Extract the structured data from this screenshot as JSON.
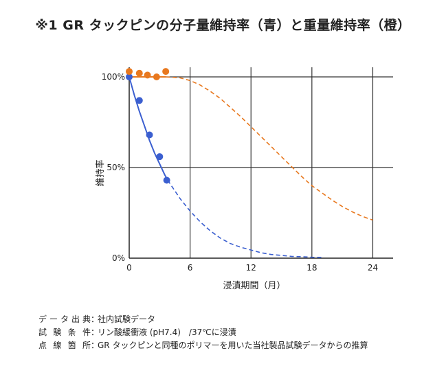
{
  "chart_data": {
    "type": "line",
    "title": "※1 GR タックピンの分子量維持率（青）と重量維持率（橙）",
    "xlabel": "浸漬期間（月）",
    "ylabel": "維持率",
    "xlim": [
      0,
      26
    ],
    "ylim": [
      0,
      100
    ],
    "x_ticks": [
      "0",
      "6",
      "12",
      "18",
      "24"
    ],
    "y_ticks": [
      "0%",
      "50%",
      "100%"
    ],
    "grid": true,
    "series": [
      {
        "color": "#3b5fd0",
        "points": [
          [
            0,
            100
          ],
          [
            1,
            87
          ],
          [
            2,
            68
          ],
          [
            3,
            56
          ],
          [
            3.7,
            43
          ]
        ],
        "fit_solid": [
          [
            0,
            100
          ],
          [
            0.5,
            90
          ],
          [
            1,
            81
          ],
          [
            1.5,
            73
          ],
          [
            2,
            65
          ],
          [
            2.5,
            58
          ],
          [
            3,
            52
          ],
          [
            3.5,
            46
          ],
          [
            3.8,
            43
          ]
        ],
        "fit_dashed": [
          [
            3.8,
            43
          ],
          [
            5,
            33
          ],
          [
            6,
            26
          ],
          [
            7,
            20
          ],
          [
            8,
            15
          ],
          [
            9,
            11
          ],
          [
            10,
            8
          ],
          [
            11,
            6
          ],
          [
            12,
            4.5
          ],
          [
            13,
            3
          ],
          [
            14,
            2
          ],
          [
            15,
            1.5
          ],
          [
            16,
            1
          ],
          [
            17,
            0.8
          ],
          [
            18,
            0.5
          ],
          [
            19,
            0.4
          ]
        ]
      },
      {
        "color": "#e8781e",
        "points": [
          [
            0,
            103
          ],
          [
            1,
            102
          ],
          [
            1.8,
            101
          ],
          [
            2.7,
            100
          ],
          [
            3.6,
            103
          ]
        ],
        "fit_solid": [
          [
            0,
            100
          ],
          [
            3.6,
            100
          ]
        ],
        "fit_dashed": [
          [
            3.6,
            100
          ],
          [
            5,
            99.5
          ],
          [
            6,
            98
          ],
          [
            7,
            95.5
          ],
          [
            8,
            92
          ],
          [
            9,
            88
          ],
          [
            10,
            83
          ],
          [
            11,
            78
          ],
          [
            12,
            72.5
          ],
          [
            13,
            67
          ],
          [
            14,
            61.5
          ],
          [
            15,
            56
          ],
          [
            16,
            50.5
          ],
          [
            17,
            45
          ],
          [
            18,
            40
          ],
          [
            19,
            36
          ],
          [
            20,
            32
          ],
          [
            21,
            28.5
          ],
          [
            22,
            25.5
          ],
          [
            23,
            23
          ],
          [
            24,
            21
          ]
        ]
      }
    ]
  },
  "notes": [
    {
      "label": "データ出典",
      "value": "社内試験データ"
    },
    {
      "label": "試験条件",
      "value": "リン酸緩衝液 (pH7.4)　/37℃に浸漬"
    },
    {
      "label": "点線箇所",
      "value": "GR タックピンと同種のポリマーを用いた当社製品試験データからの推算"
    }
  ]
}
